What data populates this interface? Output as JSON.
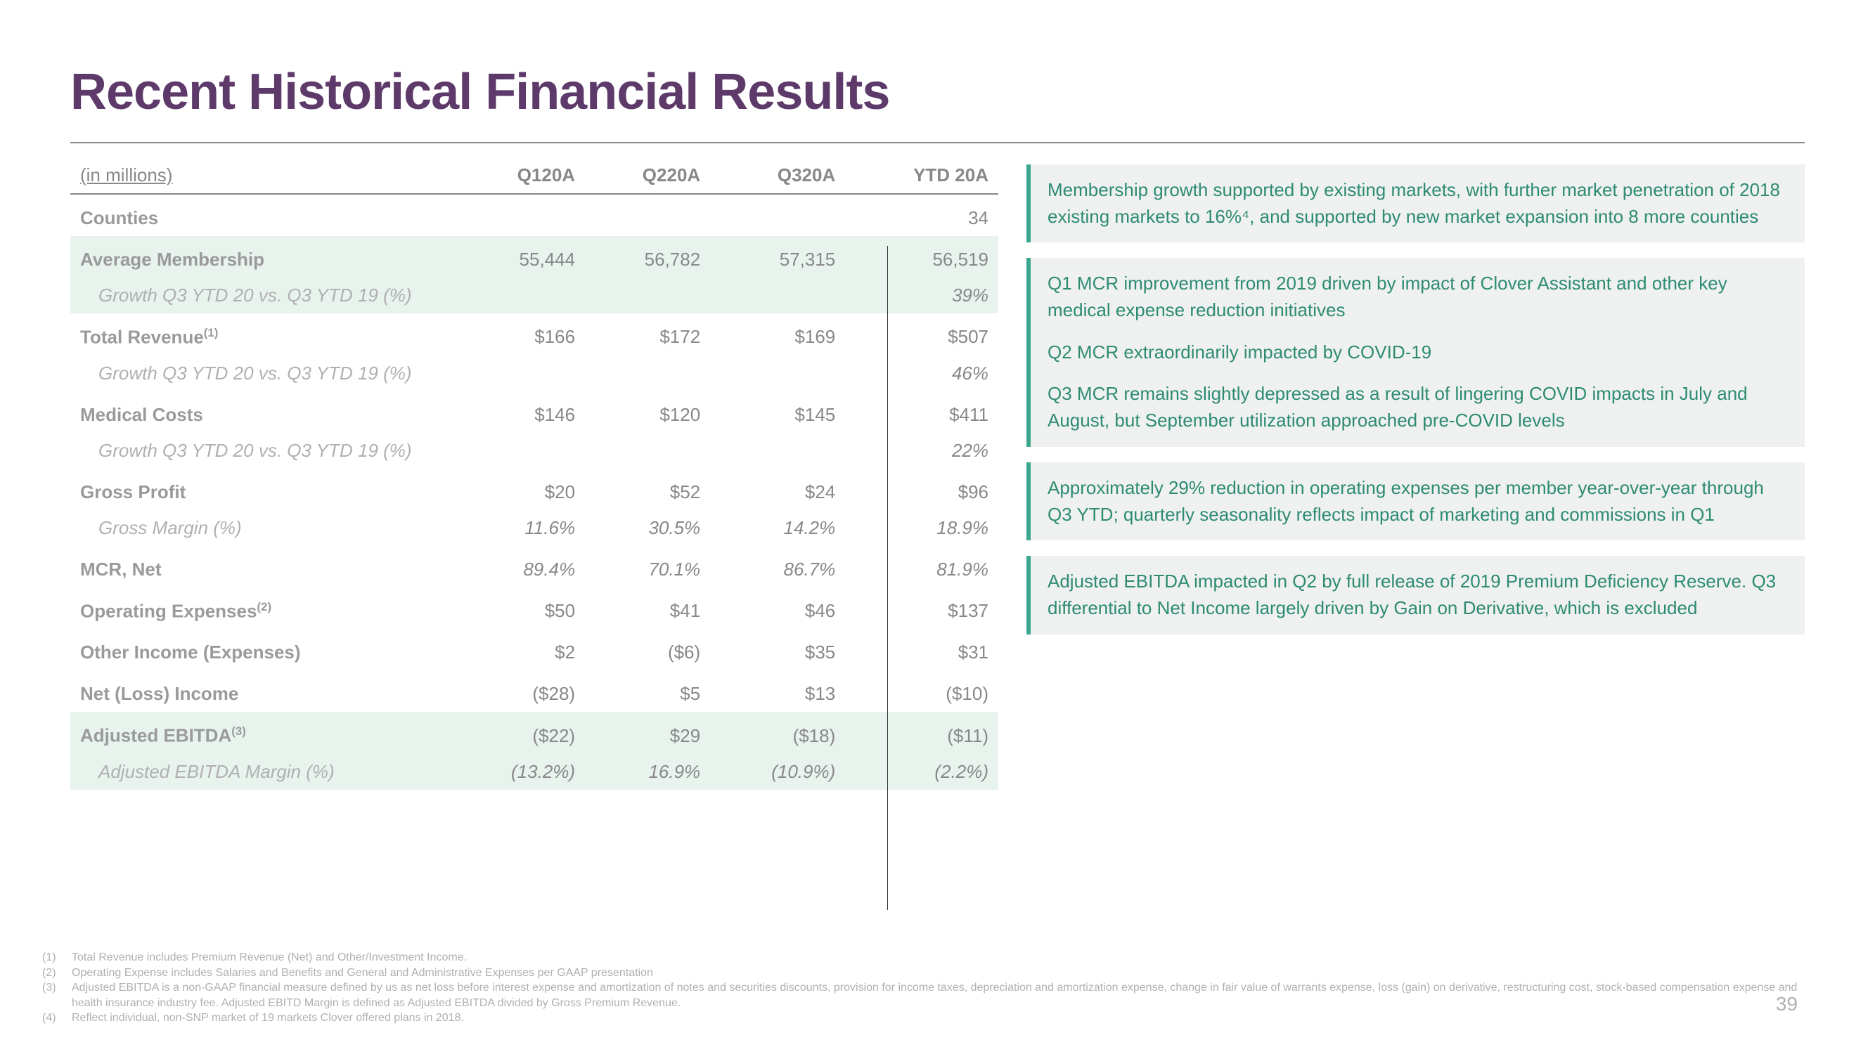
{
  "title": "Recent Historical Financial Results",
  "table": {
    "header_label": "(in millions)",
    "columns": [
      "Q120A",
      "Q220A",
      "Q320A",
      "YTD 20A"
    ],
    "rows": [
      {
        "label": "Counties",
        "vals": [
          "",
          "",
          "",
          "34"
        ],
        "hl": false,
        "sep": true
      },
      {
        "label": "Average Membership",
        "vals": [
          "55,444",
          "56,782",
          "57,315",
          "56,519"
        ],
        "hl": true,
        "sep": true
      },
      {
        "sublabel": "Growth Q3 YTD 20 vs. Q3 YTD 19 (%)",
        "vals": [
          "",
          "",
          "",
          "39%"
        ],
        "hl": true
      },
      {
        "label": "Total Revenue",
        "sup": "(1)",
        "vals": [
          "$166",
          "$172",
          "$169",
          "$507"
        ],
        "hl": false,
        "sep": true
      },
      {
        "sublabel": "Growth Q3 YTD 20 vs. Q3 YTD 19 (%)",
        "vals": [
          "",
          "",
          "",
          "46%"
        ],
        "hl": false
      },
      {
        "label": "Medical Costs",
        "vals": [
          "$146",
          "$120",
          "$145",
          "$411"
        ],
        "hl": false,
        "sep": true
      },
      {
        "sublabel": "Growth Q3 YTD 20 vs. Q3 YTD 19 (%)",
        "vals": [
          "",
          "",
          "",
          "22%"
        ],
        "hl": false
      },
      {
        "label": "Gross Profit",
        "vals": [
          "$20",
          "$52",
          "$24",
          "$96"
        ],
        "hl": false,
        "sep": true
      },
      {
        "sublabel": "Gross Margin (%)",
        "vals": [
          "11.6%",
          "30.5%",
          "14.2%",
          "18.9%"
        ],
        "hl": false
      },
      {
        "label": "MCR, Net",
        "vals": [
          "89.4%",
          "70.1%",
          "86.7%",
          "81.9%"
        ],
        "hl": false,
        "sep": true,
        "italic_vals": true
      },
      {
        "label": "Operating Expenses",
        "sup": "(2)",
        "vals": [
          "$50",
          "$41",
          "$46",
          "$137"
        ],
        "hl": false,
        "sep": true
      },
      {
        "label": "Other Income (Expenses)",
        "vals": [
          "$2",
          "($6)",
          "$35",
          "$31"
        ],
        "hl": false,
        "sep": true
      },
      {
        "label": "Net (Loss) Income",
        "vals": [
          "($28)",
          "$5",
          "$13",
          "($10)"
        ],
        "hl": false,
        "sep": true
      },
      {
        "label": "Adjusted EBITDA",
        "sup": "(3)",
        "vals": [
          "($22)",
          "$29",
          "($18)",
          "($11)"
        ],
        "hl": true,
        "sep": true
      },
      {
        "sublabel": "Adjusted EBITDA Margin (%)",
        "vals": [
          "(13.2%)",
          "16.9%",
          "(10.9%)",
          "(2.2%)"
        ],
        "hl": true
      }
    ]
  },
  "callouts": [
    "Membership growth supported by existing markets, with further market penetration of 2018 existing markets to 16%⁴, and supported by new market expansion into 8 more counties",
    "Q1 MCR improvement from 2019 driven by impact of Clover Assistant and other key medical expense reduction initiatives\n\nQ2 MCR extraordinarily impacted by COVID-19\n\nQ3 MCR remains slightly depressed as a result of lingering COVID impacts in July and August, but September utilization approached pre-COVID levels",
    "Approximately 29% reduction in operating expenses per member year-over-year through Q3 YTD; quarterly seasonality reflects impact of marketing and commissions in Q1",
    "Adjusted EBITDA impacted in Q2 by full release of 2019 Premium Deficiency Reserve. Q3 differential to Net Income largely driven by Gain on Derivative, which is excluded"
  ],
  "footnotes": [
    {
      "n": "(1)",
      "t": "Total Revenue includes Premium Revenue (Net) and Other/Investment Income."
    },
    {
      "n": "(2)",
      "t": "Operating Expense includes Salaries and Benefits and General and Administrative Expenses per GAAP presentation"
    },
    {
      "n": "(3)",
      "t": "Adjusted EBITDA is a non-GAAP financial measure defined by us as net loss before interest expense and amortization of notes and securities discounts, provision for income taxes, depreciation and amortization expense, change in fair value of warrants expense, loss (gain) on derivative, restructuring cost, stock-based compensation expense and health insurance industry fee.  Adjusted EBITD Margin is defined as Adjusted EBITDA divided by Gross Premium Revenue."
    },
    {
      "n": "(4)",
      "t": "Reflect individual, non-SNP market of 19 markets Clover offered plans in 2018."
    }
  ],
  "page_number": "39",
  "colors": {
    "title": "#5e3a6b",
    "accent": "#3aa88e",
    "callout_bg": "#eef1f0",
    "callout_text": "#2e8b72",
    "row_hl": "#e8f3ed",
    "text_muted": "#9a9a9a"
  }
}
